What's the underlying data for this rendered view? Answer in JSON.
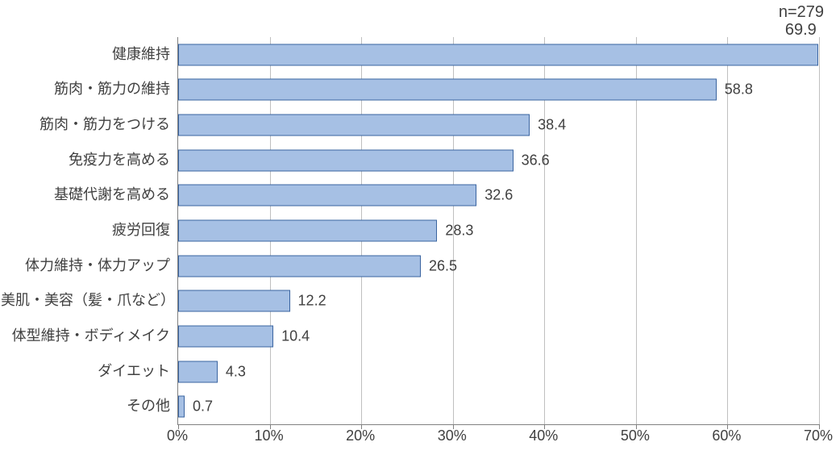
{
  "chart": {
    "type": "bar-horizontal",
    "n_label": "n=279",
    "x_axis": {
      "min": 0,
      "max": 70,
      "tick_step": 10,
      "tick_suffix": "%",
      "ticks": [
        0,
        10,
        20,
        30,
        40,
        50,
        60,
        70
      ]
    },
    "bar_color": "#a6c0e4",
    "bar_border_color": "#3a64a0",
    "grid_color": "#bfbfbf",
    "axis_color": "#808080",
    "text_color": "#404040",
    "background_color": "#ffffff",
    "label_fontsize": 18,
    "value_fontsize": 18,
    "tick_fontsize": 18,
    "n_fontsize": 20,
    "categories": [
      {
        "label": "健康維持",
        "value": 69.9
      },
      {
        "label": "筋肉・筋力の維持",
        "value": 58.8
      },
      {
        "label": "筋肉・筋力をつける",
        "value": 38.4
      },
      {
        "label": "免疫力を高める",
        "value": 36.6
      },
      {
        "label": "基礎代謝を高める",
        "value": 32.6
      },
      {
        "label": "疲労回復",
        "value": 28.3
      },
      {
        "label": "体力維持・体力アップ",
        "value": 26.5
      },
      {
        "label": "美肌・美容（髪・爪など）",
        "value": 12.2
      },
      {
        "label": "体型維持・ボディメイク",
        "value": 10.4
      },
      {
        "label": "ダイエット",
        "value": 4.3
      },
      {
        "label": "その他",
        "value": 0.7
      }
    ]
  }
}
